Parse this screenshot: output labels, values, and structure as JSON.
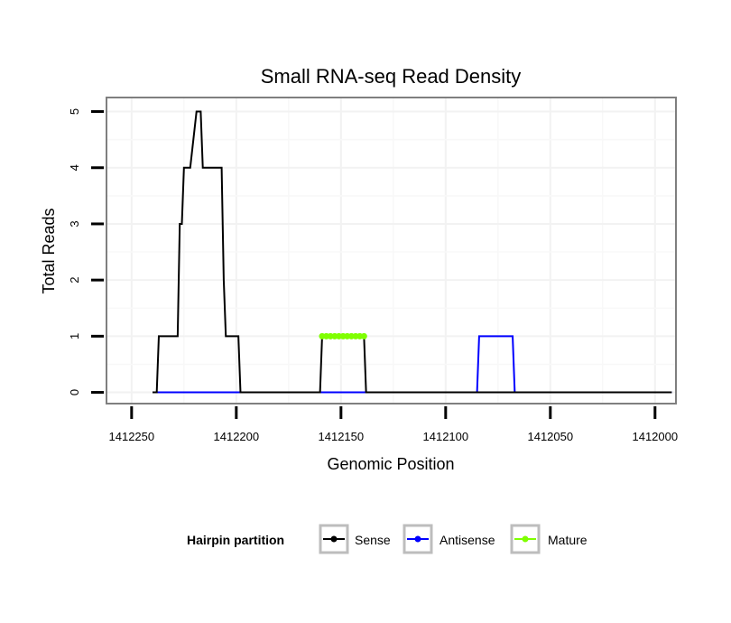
{
  "chart_data": {
    "type": "line",
    "title": "Small RNA-seq Read Density",
    "xlabel": "Genomic Position",
    "ylabel": "Total Reads",
    "xlim": [
      1412262,
      1411990
    ],
    "x_reversed": true,
    "ylim": [
      -0.2,
      5.25
    ],
    "x_ticks": [
      1412250,
      1412200,
      1412150,
      1412100,
      1412050,
      1412000
    ],
    "x_tick_labels": [
      "1412250",
      "1412200",
      "1412150",
      "1412100",
      "1412050",
      "1412000"
    ],
    "y_ticks": [
      0,
      1,
      2,
      3,
      4,
      5
    ],
    "y_tick_labels": [
      "0",
      "1",
      "2",
      "3",
      "4",
      "5"
    ],
    "grid": true,
    "legend": {
      "title": "Hairpin partition",
      "position": "bottom",
      "entries": [
        "Sense",
        "Antisense",
        "Mature"
      ]
    },
    "series": [
      {
        "name": "Sense",
        "color": "#000000",
        "x": [
          1412240,
          1412238,
          1412237,
          1412228,
          1412227,
          1412226,
          1412225,
          1412224,
          1412223,
          1412222,
          1412219,
          1412218,
          1412217,
          1412216,
          1412215,
          1412207,
          1412206,
          1412205,
          1412204,
          1412199,
          1412198,
          1412160,
          1412159,
          1412139,
          1412138,
          1411992
        ],
        "y": [
          0,
          0,
          1,
          1,
          3,
          3,
          4,
          4,
          4,
          4,
          5,
          5,
          5,
          4,
          4,
          4,
          2,
          1,
          1,
          1,
          0,
          0,
          1,
          1,
          0,
          0
        ]
      },
      {
        "name": "Antisense",
        "color": "#0000ff",
        "x": [
          1412240,
          1412085,
          1412084,
          1412068,
          1412067,
          1411992
        ],
        "y": [
          0,
          0,
          1,
          1,
          0,
          0
        ]
      },
      {
        "name": "Mature",
        "color": "#7fff00",
        "x": [
          1412159,
          1412157,
          1412155,
          1412153,
          1412151,
          1412149,
          1412147,
          1412145,
          1412143,
          1412141,
          1412139
        ],
        "y": [
          1,
          1,
          1,
          1,
          1,
          1,
          1,
          1,
          1,
          1,
          1
        ]
      }
    ]
  }
}
